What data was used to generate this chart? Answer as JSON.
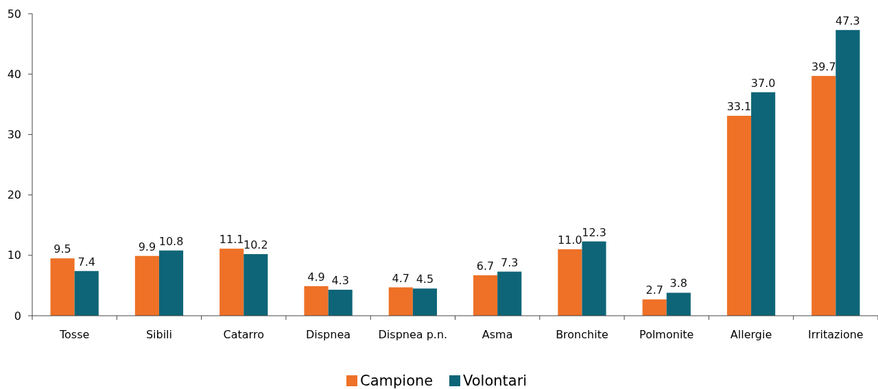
{
  "chart_data": {
    "type": "bar",
    "categories": [
      "Tosse",
      "Sibili",
      "Catarro",
      "Dispnea",
      "Dispnea p.n.",
      "Asma",
      "Bronchite",
      "Polmonite",
      "Allergie",
      "Irritazione"
    ],
    "series": [
      {
        "name": "Campione",
        "color": "#ee7127",
        "values": [
          9.5,
          9.9,
          11.1,
          4.9,
          4.7,
          6.7,
          11.0,
          2.7,
          33.1,
          39.7
        ],
        "value_labels": [
          "9.5",
          "9.9",
          "11.1",
          "4.9",
          "4.7",
          "6.7",
          "11.0",
          "2.7",
          "33.1",
          "39.7"
        ]
      },
      {
        "name": "Volontari",
        "color": "#0e6577",
        "values": [
          7.4,
          10.8,
          10.2,
          4.3,
          4.5,
          7.3,
          12.3,
          3.8,
          37.0,
          47.3
        ],
        "value_labels": [
          "7.4",
          "10.8",
          "10.2",
          "4.3",
          "4.5",
          "7.3",
          "12.3",
          "3.8",
          "37.0",
          "47.3"
        ]
      }
    ],
    "ylim": [
      0,
      50
    ],
    "yticks": [
      0,
      10,
      20,
      30,
      40,
      50
    ],
    "grid": false,
    "legend": "bottom"
  }
}
